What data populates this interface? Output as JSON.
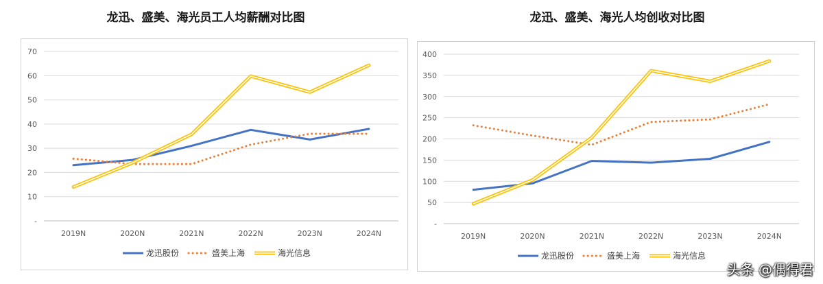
{
  "chart_data": [
    {
      "type": "line",
      "title": "龙迅、盛美、海光员工人均薪酬对比图",
      "categories": [
        "2019N",
        "2020N",
        "2021N",
        "2022N",
        "2023N",
        "2024N"
      ],
      "ylim": [
        0,
        70
      ],
      "yticks": [
        "-",
        "10",
        "20",
        "30",
        "40",
        "50",
        "60",
        "70"
      ],
      "grid": true,
      "legend_position": "bottom",
      "series": [
        {
          "name": "龙迅股份",
          "style": "solid",
          "color": "#4472c4",
          "values": [
            23,
            25.2,
            31,
            37.6,
            33.6,
            38
          ]
        },
        {
          "name": "盛美上海",
          "style": "dotted",
          "color": "#ed7d31",
          "values": [
            25.7,
            23.5,
            23.5,
            31.5,
            36,
            36
          ]
        },
        {
          "name": "海光信息",
          "style": "double",
          "color": "#ffc000",
          "values": [
            14,
            24,
            35.8,
            59.8,
            53.2,
            64.3
          ]
        }
      ]
    },
    {
      "type": "line",
      "title": "龙迅、盛美、海光人均创收对比图",
      "categories": [
        "2019N",
        "2020N",
        "2021N",
        "2022N",
        "2023N",
        "2024N"
      ],
      "ylim": [
        0,
        400
      ],
      "yticks": [
        "-",
        "50",
        "100",
        "150",
        "200",
        "250",
        "300",
        "350",
        "400"
      ],
      "grid": true,
      "legend_position": "bottom",
      "series": [
        {
          "name": "龙迅股份",
          "style": "solid",
          "color": "#4472c4",
          "values": [
            80,
            95,
            148,
            144,
            153,
            193
          ]
        },
        {
          "name": "盛美上海",
          "style": "dotted",
          "color": "#ed7d31",
          "values": [
            232,
            208,
            186,
            240,
            246,
            282
          ]
        },
        {
          "name": "海光信息",
          "style": "double",
          "color": "#ffc000",
          "values": [
            47,
            103,
            203,
            361,
            336,
            384
          ]
        }
      ]
    }
  ],
  "watermark": "头条 @偶得君"
}
